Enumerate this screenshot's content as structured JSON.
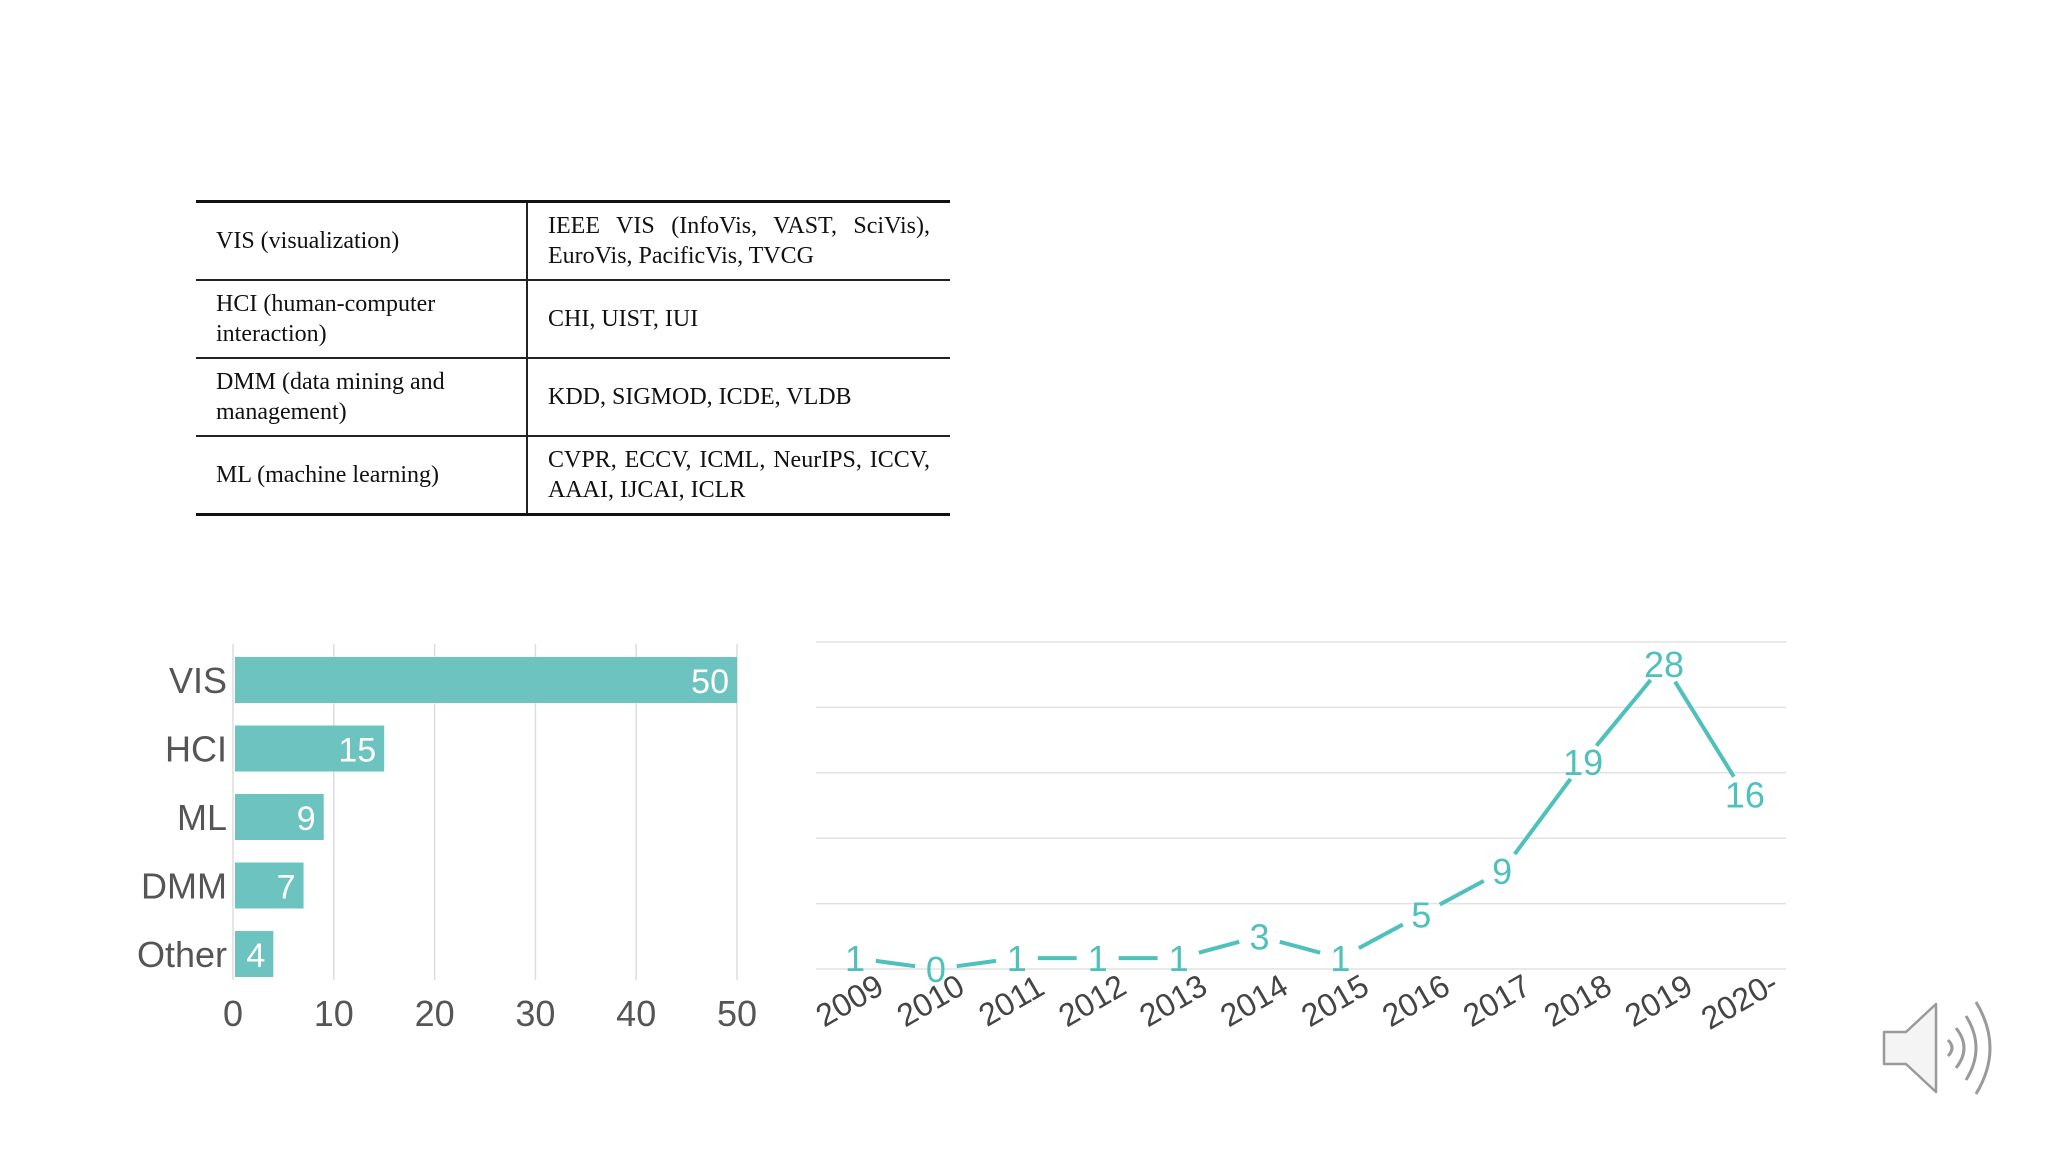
{
  "table": {
    "rows": [
      {
        "field": "VIS (visualization)",
        "venues": "IEEE VIS (InfoVis, VAST, SciVis), EuroVis, PacificVis, TVCG"
      },
      {
        "field": "HCI (human-computer interaction)",
        "venues": "CHI, UIST, IUI"
      },
      {
        "field": "DMM (data mining and management)",
        "venues": "KDD, SIGMOD, ICDE, VLDB"
      },
      {
        "field": "ML (machine learning)",
        "venues": "CVPR, ECCV, ICML, NeurIPS, ICCV, AAAI, IJCAI, ICLR"
      }
    ]
  },
  "chart_data": [
    {
      "type": "bar",
      "orientation": "horizontal",
      "categories": [
        "VIS",
        "HCI",
        "ML",
        "DMM",
        "Other"
      ],
      "values": [
        50,
        15,
        9,
        7,
        4
      ],
      "xlim": [
        0,
        50
      ],
      "xticks": [
        0,
        10,
        20,
        30,
        40,
        50
      ],
      "color": "#6cc3bf",
      "value_label_color": "#ffffff",
      "grid": true
    },
    {
      "type": "line",
      "x": [
        "2009",
        "2010",
        "2011",
        "2012",
        "2013",
        "2014",
        "2015",
        "2016",
        "2017",
        "2018",
        "2019",
        "2020-"
      ],
      "values": [
        1,
        0,
        1,
        1,
        1,
        3,
        1,
        5,
        9,
        19,
        28,
        16
      ],
      "ylim": [
        0,
        30
      ],
      "color": "#4fc1bc",
      "grid": true
    }
  ],
  "icons": {
    "speaker": "speaker-volume-icon"
  }
}
